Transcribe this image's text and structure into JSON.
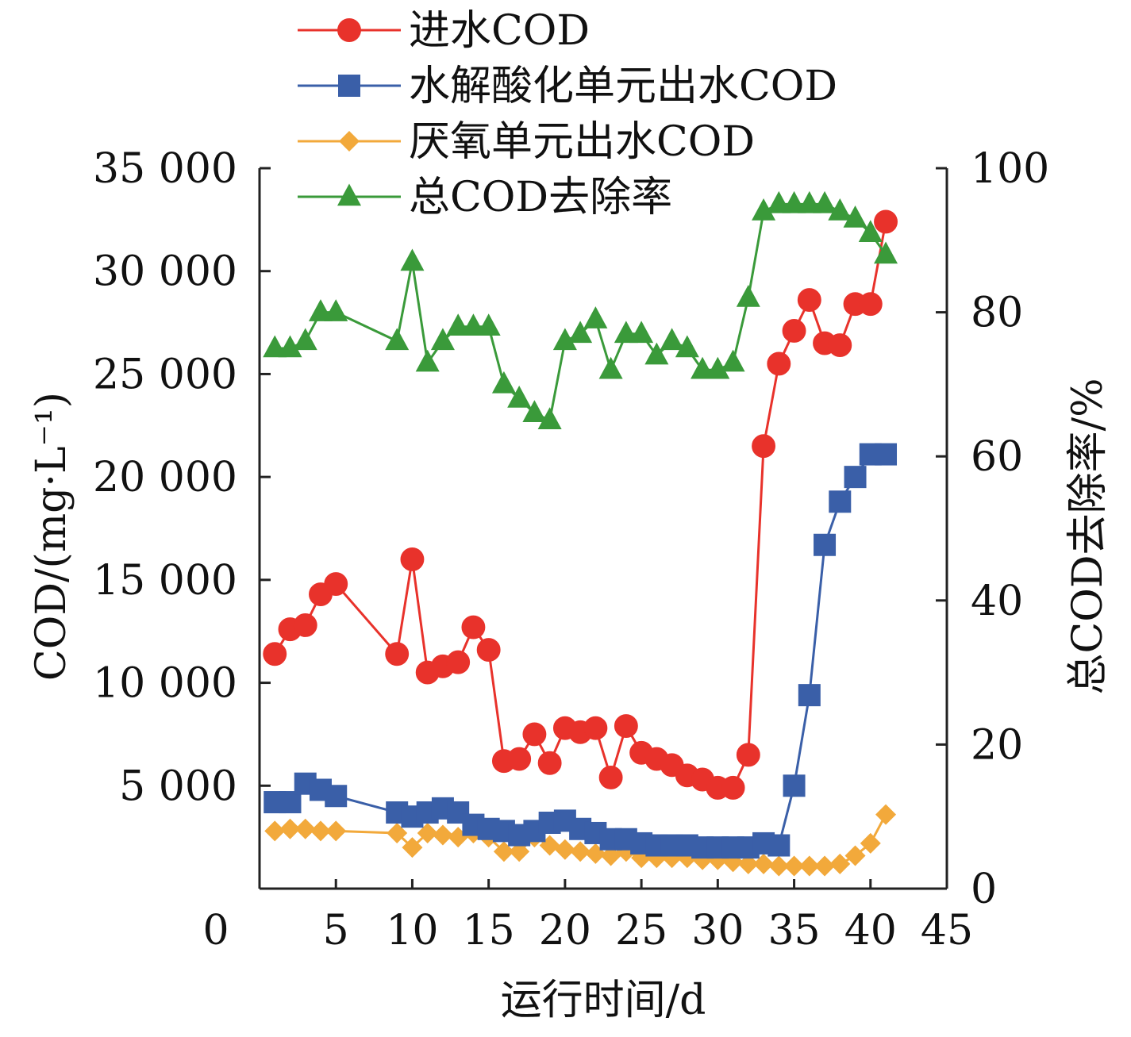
{
  "chart_data": {
    "type": "line",
    "xlabel": "运行时间/d",
    "ylabel_left": "COD/(mg·L⁻¹)",
    "ylabel_right": "总COD去除率/%",
    "x_ticks": [
      "0",
      "5",
      "10",
      "15",
      "20",
      "25",
      "30",
      "35",
      "40",
      "45"
    ],
    "y_left_ticks": [
      "5 000",
      "10 000",
      "15 000",
      "20 000",
      "25 000",
      "30 000",
      "35 000"
    ],
    "y_right_ticks": [
      "0",
      "20",
      "40",
      "60",
      "80",
      "100"
    ],
    "xlim": [
      0,
      45
    ],
    "ylim_left": [
      0,
      35000
    ],
    "ylim_right": [
      0,
      100
    ],
    "legend_position": "top-left",
    "grid": false,
    "series": [
      {
        "name": "进水COD",
        "axis": "left",
        "color": "#e8322b",
        "marker": "circle",
        "x": [
          1,
          2,
          3,
          4,
          5,
          9,
          10,
          11,
          12,
          13,
          14,
          15,
          16,
          17,
          18,
          19,
          20,
          21,
          22,
          23,
          24,
          25,
          26,
          27,
          28,
          29,
          30,
          31,
          32,
          33,
          34,
          35,
          36,
          37,
          38,
          39,
          40,
          41
        ],
        "values": [
          11400,
          12600,
          12800,
          14300,
          14800,
          11400,
          16000,
          10500,
          10800,
          11000,
          12700,
          11600,
          6200,
          6300,
          7500,
          6100,
          7800,
          7600,
          7800,
          5400,
          7900,
          6600,
          6300,
          6000,
          5500,
          5300,
          4900,
          4900,
          6500,
          21500,
          25500,
          27100,
          28600,
          26500,
          26400,
          28400,
          28400,
          32400
        ]
      },
      {
        "name": "水解酸化单元出水COD",
        "axis": "left",
        "color": "#3a5fa8",
        "marker": "square",
        "x": [
          1,
          2,
          3,
          4,
          5,
          9,
          10,
          11,
          12,
          13,
          14,
          15,
          16,
          17,
          18,
          19,
          20,
          21,
          22,
          23,
          24,
          25,
          26,
          27,
          28,
          29,
          30,
          31,
          32,
          33,
          34,
          35,
          36,
          37,
          38,
          39,
          40,
          41
        ],
        "values": [
          4200,
          4200,
          5100,
          4800,
          4500,
          3700,
          3500,
          3700,
          3900,
          3700,
          3100,
          2900,
          2800,
          2600,
          2800,
          3200,
          3300,
          2900,
          2700,
          2400,
          2400,
          2200,
          2100,
          2100,
          2100,
          2000,
          2000,
          2000,
          2000,
          2200,
          2100,
          5000,
          9400,
          16700,
          18800,
          20000,
          21100,
          21100
        ]
      },
      {
        "name": "厌氧单元出水COD",
        "axis": "left",
        "color": "#f2a93b",
        "marker": "diamond",
        "x": [
          1,
          2,
          3,
          4,
          5,
          9,
          10,
          11,
          12,
          13,
          14,
          15,
          16,
          17,
          18,
          19,
          20,
          21,
          22,
          23,
          24,
          25,
          26,
          27,
          28,
          29,
          30,
          31,
          32,
          33,
          34,
          35,
          36,
          37,
          38,
          39,
          40,
          41
        ],
        "values": [
          2800,
          2900,
          2900,
          2800,
          2800,
          2700,
          2000,
          2700,
          2600,
          2500,
          2700,
          2500,
          1800,
          1800,
          2500,
          2100,
          1900,
          1800,
          1700,
          1600,
          1800,
          1500,
          1500,
          1500,
          1500,
          1400,
          1400,
          1300,
          1200,
          1200,
          1100,
          1100,
          1100,
          1100,
          1200,
          1600,
          2200,
          3600
        ]
      },
      {
        "name": "总COD去除率",
        "axis": "right",
        "color": "#3a9a3a",
        "marker": "triangle",
        "x": [
          1,
          2,
          3,
          4,
          5,
          9,
          10,
          11,
          12,
          13,
          14,
          15,
          16,
          17,
          18,
          19,
          20,
          21,
          22,
          23,
          24,
          25,
          26,
          27,
          28,
          29,
          30,
          31,
          32,
          33,
          34,
          35,
          36,
          37,
          38,
          39,
          40,
          41
        ],
        "values": [
          75,
          75,
          76,
          80,
          80,
          76,
          87,
          73,
          76,
          78,
          78,
          78,
          70,
          68,
          66,
          65,
          76,
          77,
          79,
          72,
          77,
          77,
          74,
          76,
          75,
          72,
          72,
          73,
          82,
          94,
          95,
          95,
          95,
          95,
          94,
          93,
          91,
          88
        ]
      }
    ]
  }
}
